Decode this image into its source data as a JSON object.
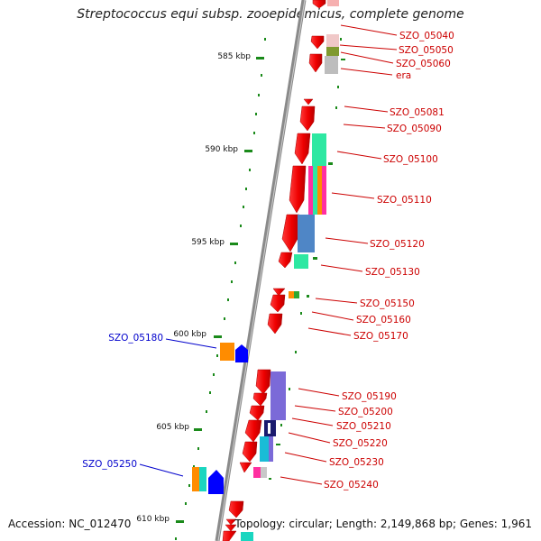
{
  "title": "Streptococcus equi subsp. zooepidemicus, complete genome",
  "footer": {
    "accession": "Accession: NC_012470",
    "summary": "Topology: circular; Length: 2,149,868 bp; Genes: 1,961"
  },
  "scale_labels": [
    "585 kbp",
    "590 kbp",
    "595 kbp",
    "600 kbp",
    "605 kbp",
    "610 kbp"
  ],
  "genes_right": [
    "SZO_05040",
    "SZO_05050",
    "SZO_05060",
    "era",
    "SZO_05081",
    "SZO_05090",
    "SZO_05100",
    "SZO_05110",
    "SZO_05120",
    "SZO_05130",
    "SZO_05150",
    "SZO_05160",
    "SZO_05170",
    "SZO_05190",
    "SZO_05200",
    "SZO_05210",
    "SZO_05220",
    "SZO_05230",
    "SZO_05240"
  ],
  "genes_left": [
    "SZO_05180",
    "SZO_05250"
  ],
  "colors": {
    "gene": "#ff0000",
    "backbone": "#888888",
    "tick": "#1a8a1a",
    "label_right": "#cc0000",
    "label_left": "#0000cc"
  }
}
